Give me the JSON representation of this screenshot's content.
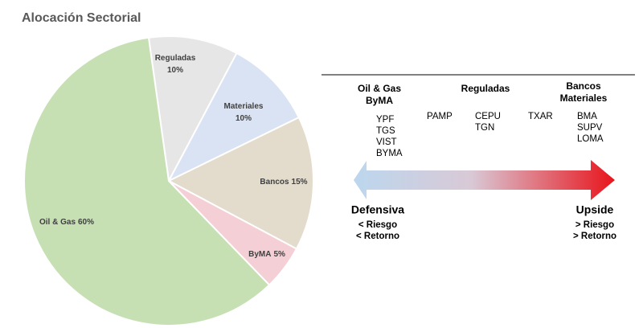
{
  "chart_data": {
    "type": "pie",
    "title": "Alocación Sectorial",
    "categories": [
      "Reguladas",
      "Materiales",
      "Bancos",
      "ByMA",
      "Oil & Gas"
    ],
    "values": [
      10,
      10,
      15,
      5,
      60
    ],
    "value_labels": [
      "10%",
      "10%",
      "15%",
      "5%",
      "60%"
    ],
    "colors": [
      "#e7e6e6",
      "#dae3f3",
      "#e3dccd",
      "#f4cfd5",
      "#c6e0b4"
    ]
  },
  "diagram": {
    "headers": [
      [
        "Oil & Gas",
        "ByMA"
      ],
      [
        "Reguladas"
      ],
      [
        "Bancos",
        "Materiales"
      ]
    ],
    "tickers": [
      [
        "YPF",
        "TGS",
        "VIST",
        "BYMA"
      ],
      [
        "PAMP"
      ],
      [
        "CEPU",
        "TGN"
      ],
      [
        "TXAR"
      ],
      [
        "BMA",
        "SUPV",
        "LOMA"
      ]
    ],
    "left": {
      "label": "Defensiva",
      "notes": [
        "< Riesgo",
        "< Retorno"
      ]
    },
    "right": {
      "label": "Upside",
      "notes": [
        "> Riesgo",
        "> Retorno"
      ]
    }
  }
}
